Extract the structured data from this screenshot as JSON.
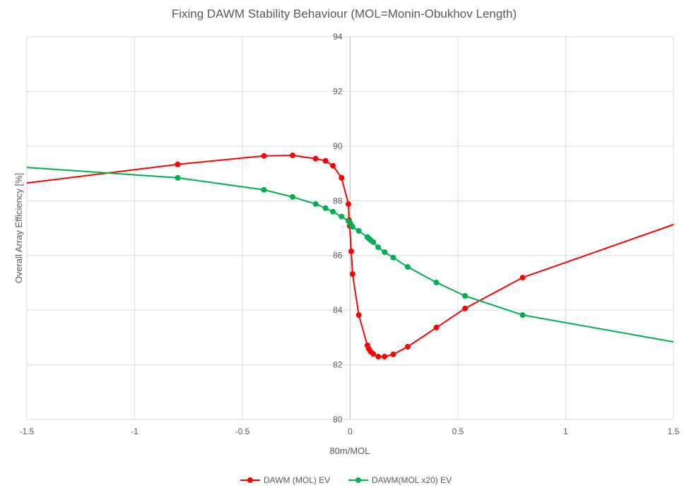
{
  "chart_data": {
    "type": "line",
    "title": "Fixing DAWM Stability Behaviour (MOL=Monin-Obukhov Length)",
    "xlabel": "80m/MOL",
    "ylabel": "Overall Array Efficiency [%]",
    "xlim": [
      -1.5,
      1.5
    ],
    "ylim": [
      80,
      94
    ],
    "xticks": [
      -1.5,
      -1,
      -0.5,
      0,
      0.5,
      1,
      1.5
    ],
    "xtick_labels": [
      "-1.5",
      "-1",
      "-0.5",
      "0",
      "0.5",
      "1",
      "1.5"
    ],
    "yticks": [
      80,
      82,
      84,
      86,
      88,
      90,
      92,
      94
    ],
    "ytick_labels": [
      "80",
      "82",
      "84",
      "86",
      "88",
      "90",
      "92",
      "94"
    ],
    "grid": true,
    "legend": "bottom-center",
    "series": [
      {
        "name": "DAWM (MOL) EV",
        "color": "#ff0000",
        "points": [
          {
            "x": -1.5,
            "y": 88.65,
            "marker": false
          },
          {
            "x": -0.8,
            "y": 89.33
          },
          {
            "x": -0.4,
            "y": 89.64
          },
          {
            "x": -0.267,
            "y": 89.66
          },
          {
            "x": -0.16,
            "y": 89.54
          },
          {
            "x": -0.114,
            "y": 89.46
          },
          {
            "x": -0.08,
            "y": 89.28
          },
          {
            "x": -0.04,
            "y": 88.84
          },
          {
            "x": -0.008,
            "y": 87.88
          },
          {
            "x": -0.005,
            "y": 87.29
          },
          {
            "x": -0.002,
            "y": 87.08
          },
          {
            "x": 0.005,
            "y": 86.15
          },
          {
            "x": 0.011,
            "y": 85.32
          },
          {
            "x": 0.04,
            "y": 83.82
          },
          {
            "x": 0.08,
            "y": 82.71
          },
          {
            "x": 0.087,
            "y": 82.58
          },
          {
            "x": 0.095,
            "y": 82.48
          },
          {
            "x": 0.107,
            "y": 82.4
          },
          {
            "x": 0.13,
            "y": 82.3
          },
          {
            "x": 0.16,
            "y": 82.3
          },
          {
            "x": 0.2,
            "y": 82.38
          },
          {
            "x": 0.267,
            "y": 82.66
          },
          {
            "x": 0.4,
            "y": 83.36
          },
          {
            "x": 0.533,
            "y": 84.06
          },
          {
            "x": 0.8,
            "y": 85.19
          },
          {
            "x": 1.5,
            "y": 87.13,
            "marker": false
          }
        ]
      },
      {
        "name": "DAWM(MOL x20) EV",
        "color": "#00b050",
        "points": [
          {
            "x": -1.5,
            "y": 89.22,
            "marker": false
          },
          {
            "x": -0.8,
            "y": 88.84
          },
          {
            "x": -0.4,
            "y": 88.4
          },
          {
            "x": -0.267,
            "y": 88.14
          },
          {
            "x": -0.16,
            "y": 87.88
          },
          {
            "x": -0.114,
            "y": 87.73
          },
          {
            "x": -0.08,
            "y": 87.6
          },
          {
            "x": -0.04,
            "y": 87.42
          },
          {
            "x": -0.008,
            "y": 87.26
          },
          {
            "x": 0.0,
            "y": 87.18
          },
          {
            "x": 0.005,
            "y": 87.1
          },
          {
            "x": 0.011,
            "y": 87.05
          },
          {
            "x": 0.04,
            "y": 86.9
          },
          {
            "x": 0.08,
            "y": 86.67
          },
          {
            "x": 0.087,
            "y": 86.62
          },
          {
            "x": 0.095,
            "y": 86.56
          },
          {
            "x": 0.107,
            "y": 86.49
          },
          {
            "x": 0.13,
            "y": 86.3
          },
          {
            "x": 0.16,
            "y": 86.12
          },
          {
            "x": 0.2,
            "y": 85.92
          },
          {
            "x": 0.267,
            "y": 85.58
          },
          {
            "x": 0.4,
            "y": 85.01
          },
          {
            "x": 0.533,
            "y": 84.52
          },
          {
            "x": 0.8,
            "y": 83.82
          },
          {
            "x": 1.5,
            "y": 82.84,
            "marker": false
          }
        ]
      }
    ]
  }
}
